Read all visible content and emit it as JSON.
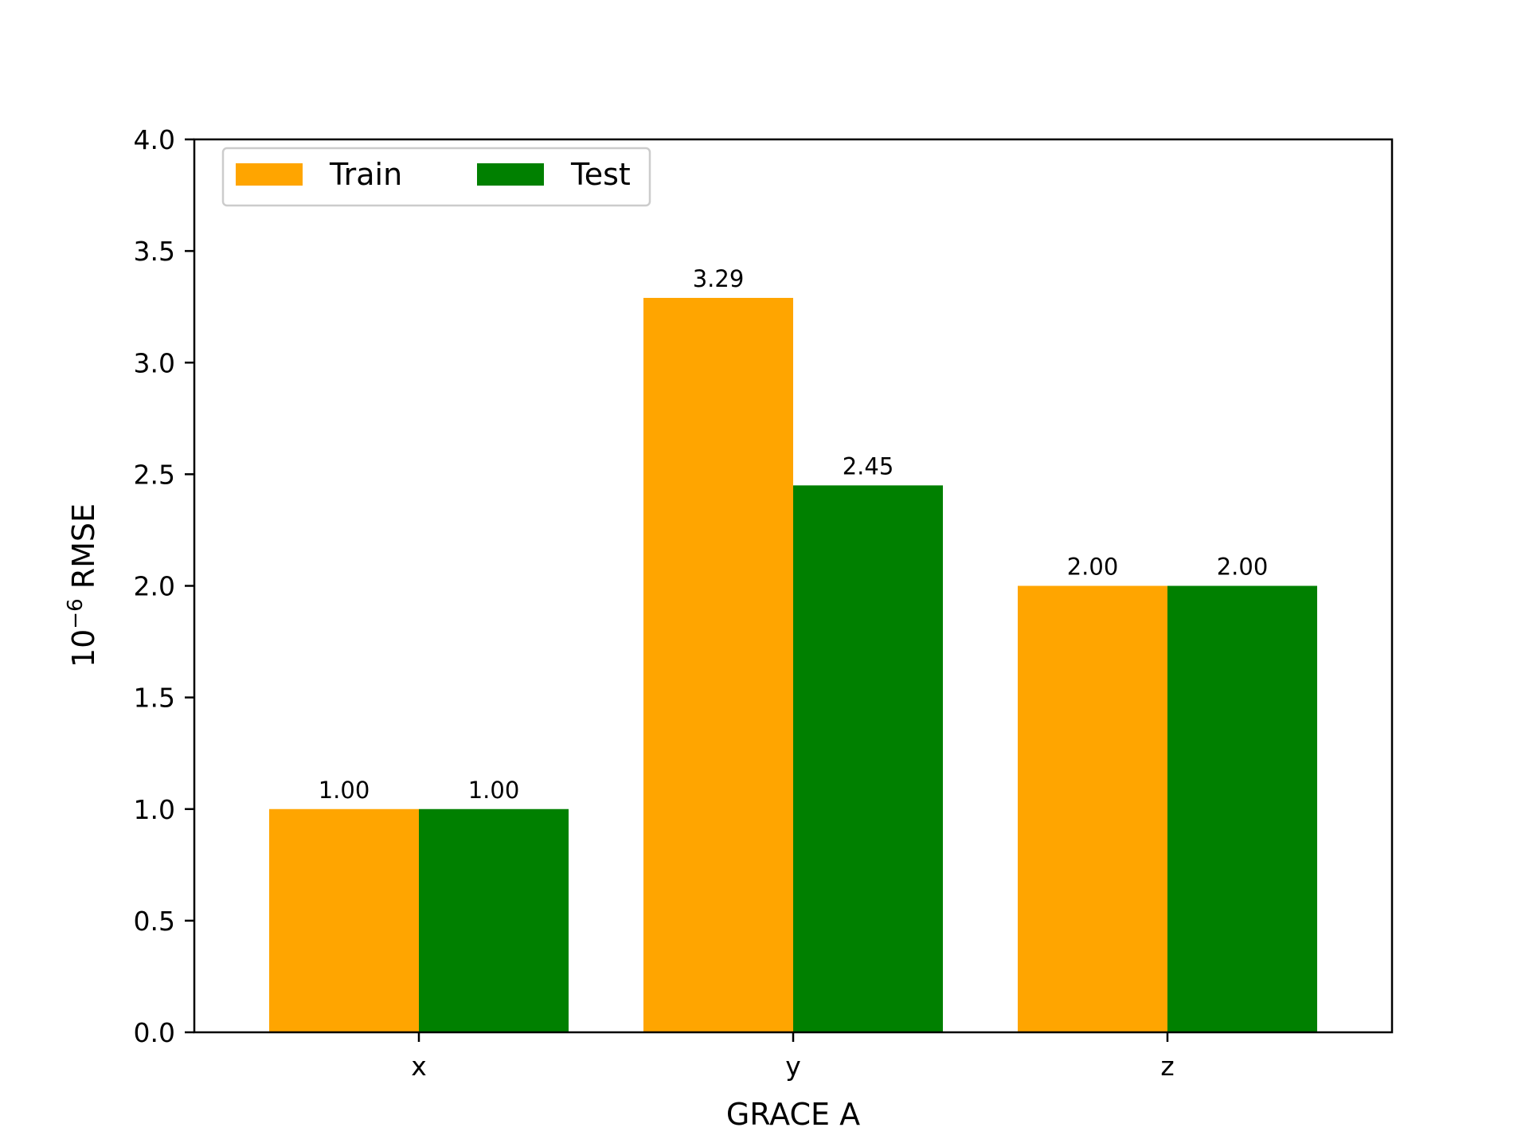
{
  "chart_data": {
    "type": "bar",
    "categories": [
      "x",
      "y",
      "z"
    ],
    "series": [
      {
        "name": "Train",
        "color": "#ffa500",
        "values": [
          1.0,
          3.29,
          2.0
        ],
        "labels": [
          "1.00",
          "3.29",
          "2.00"
        ]
      },
      {
        "name": "Test",
        "color": "#008000",
        "values": [
          1.0,
          2.45,
          2.0
        ],
        "labels": [
          "1.00",
          "2.45",
          "2.00"
        ]
      }
    ],
    "xlabel": "GRACE A",
    "ylabel_base": "10",
    "ylabel_exponent": "−6",
    "ylabel_text": "RMSE",
    "ylim": [
      0,
      4.0
    ],
    "yticks": [
      "0.0",
      "0.5",
      "1.0",
      "1.5",
      "2.0",
      "2.5",
      "3.0",
      "3.5",
      "4.0"
    ],
    "legend_position": "top-left",
    "grid": false
  }
}
